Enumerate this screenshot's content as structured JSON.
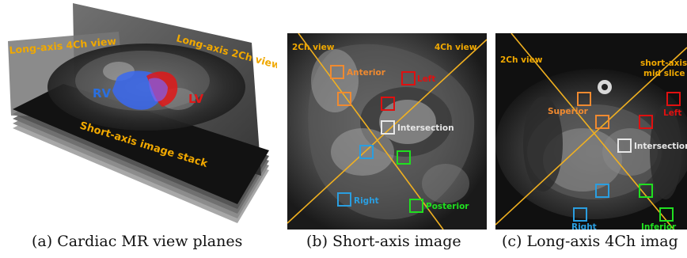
{
  "panel_a": {
    "labels": {
      "long_axis_4ch": "Long-axis 4Ch view",
      "long_axis_2ch": "Long-axis 2Ch view",
      "rv": "RV",
      "lv": "LV",
      "short_axis_stack": "Short-axis image stack"
    },
    "caption": "(a) Cardiac MR view planes"
  },
  "panel_b": {
    "labels": {
      "view_2ch": "2Ch view",
      "view_4ch": "4Ch view",
      "anterior": "Anterior",
      "left": "Left",
      "intersection": "Intersection",
      "right": "Right",
      "posterior": "Posterior"
    },
    "caption": "(b) Short-axis image"
  },
  "panel_c": {
    "labels": {
      "view_2ch": "2Ch view",
      "short_axis_mid_1": "short-axis",
      "short_axis_mid_2": "mid slice",
      "superior": "Superior",
      "left": "Left",
      "intersection": "Intersection",
      "right": "Right",
      "inferior": "Inferior"
    },
    "caption": "(c) Long-axis 4Ch imag"
  },
  "colors": {
    "line": "#f0b020",
    "plane_label": "#f0a800",
    "anterior": "#f08a30",
    "left": "#e01010",
    "intersection": "#e8e8e8",
    "right": "#2a9ee0",
    "posterior": "#20e020",
    "rv": "#2a6fe0",
    "lv": "#e01818"
  }
}
